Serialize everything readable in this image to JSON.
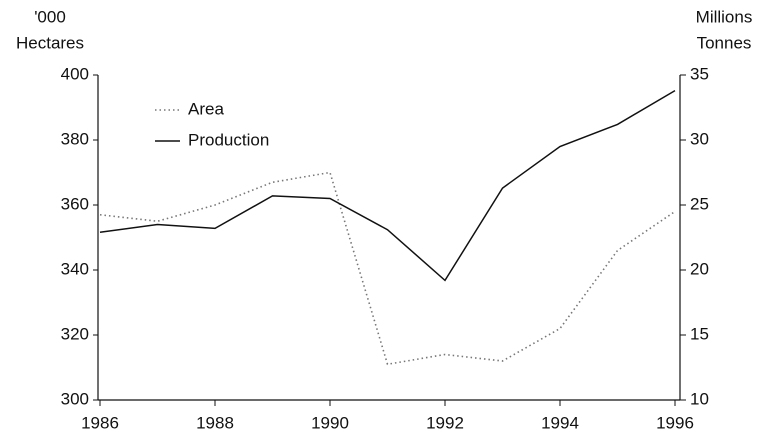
{
  "chart_data": {
    "type": "line",
    "y_label_lines": [
      "'000",
      "Hectares"
    ],
    "y2_label_lines": [
      "Millions",
      "Tonnes"
    ],
    "x": [
      1986,
      1987,
      1988,
      1989,
      1990,
      1991,
      1992,
      1993,
      1994,
      1995,
      1996
    ],
    "xlim": [
      1986,
      1996
    ],
    "xticks": [
      1986,
      1988,
      1990,
      1992,
      1994,
      1996
    ],
    "ylim": [
      300,
      400
    ],
    "yticks": [
      300,
      320,
      340,
      360,
      380,
      400
    ],
    "y2lim": [
      10,
      35
    ],
    "y2ticks": [
      10,
      15,
      20,
      25,
      30,
      35
    ],
    "series": [
      {
        "name": "Area",
        "color": "#777777",
        "style": "dotted",
        "values": [
          357,
          355,
          360,
          367,
          370,
          311,
          314,
          312,
          322,
          346,
          358
        ]
      },
      {
        "name": "Production",
        "color": "#111111",
        "style": "solid",
        "axis": "y2",
        "values": [
          22.9,
          23.5,
          23.2,
          25.7,
          25.5,
          23.1,
          19.2,
          26.3,
          29.5,
          31.2,
          33.8
        ]
      }
    ],
    "legend": "upper-left"
  }
}
